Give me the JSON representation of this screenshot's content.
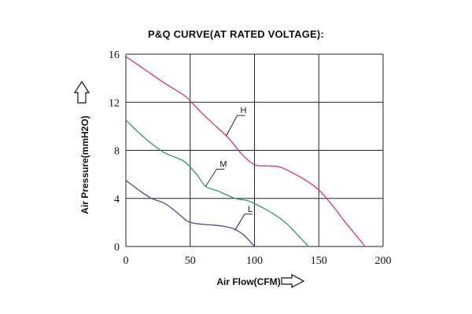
{
  "chart_data": {
    "type": "line",
    "title": "P&Q CURVE(AT RATED VOLTAGE):",
    "xlabel": "Air Flow(CFM)",
    "ylabel": "Air Pressure(mmH2O)",
    "xlim": [
      0,
      200
    ],
    "ylim": [
      0,
      16
    ],
    "xticks": [
      0,
      50,
      100,
      150,
      200
    ],
    "yticks": [
      0,
      4,
      8,
      12,
      16
    ],
    "grid": true,
    "series": [
      {
        "name": "H",
        "color": "#d6337a",
        "x": [
          0,
          15,
          30,
          45,
          50,
          60,
          70,
          80,
          90,
          100,
          110,
          120,
          130,
          140,
          150,
          160,
          170,
          180,
          186
        ],
        "y": [
          15.8,
          14.7,
          13.6,
          12.6,
          12.1,
          11.0,
          10.0,
          9.0,
          7.7,
          6.8,
          6.7,
          6.6,
          6.1,
          5.5,
          4.7,
          3.5,
          2.1,
          0.8,
          0.0
        ]
      },
      {
        "name": "M",
        "color": "#2e9a6a",
        "x": [
          0,
          15,
          30,
          45,
          55,
          62,
          72,
          85,
          95,
          105,
          115,
          125,
          135,
          142
        ],
        "y": [
          10.5,
          9.0,
          7.8,
          7.1,
          6.0,
          5.0,
          4.6,
          4.0,
          3.8,
          3.3,
          2.7,
          1.9,
          0.8,
          0.0
        ]
      },
      {
        "name": "L",
        "color": "#4a4d8c",
        "x": [
          0,
          10,
          20,
          30,
          40,
          48,
          55,
          65,
          75,
          83,
          90,
          95,
          100
        ],
        "y": [
          5.5,
          4.7,
          4.0,
          3.6,
          2.8,
          2.1,
          1.9,
          1.8,
          1.7,
          1.5,
          1.1,
          0.6,
          0.0
        ]
      }
    ]
  },
  "icons": {
    "y_axis_arrow": "arrow-up-outline-icon",
    "x_axis_arrow": "arrow-right-outline-icon"
  }
}
